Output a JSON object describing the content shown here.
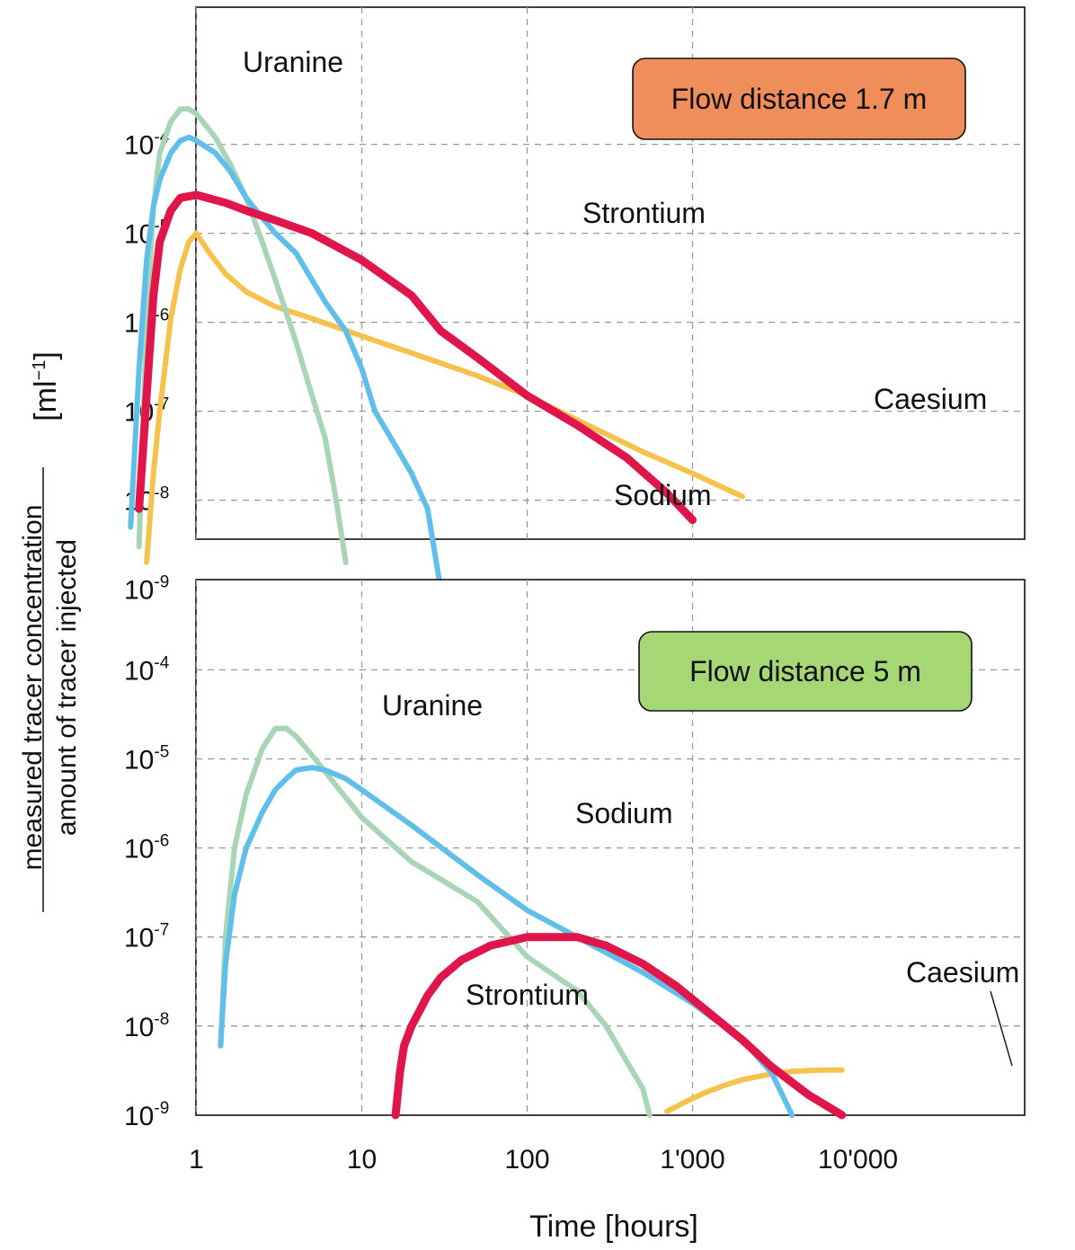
{
  "figure": {
    "xlabel": "Time  [hours]",
    "ylabel": {
      "unit_base": "[ml",
      "unit_exp": "−1",
      "unit_close": "]",
      "numerator": "measured tracer concentration",
      "denominator": "amount of tracer injected"
    },
    "x_ticks": [
      "1",
      "10",
      "100",
      "1'000",
      "10'000"
    ],
    "y_tick_base": "10",
    "y_tick_exps": [
      "-4",
      "-5",
      "-6",
      "-7",
      "-8",
      "-9"
    ]
  },
  "colors": {
    "Uranine": "#a8d5b5",
    "Sodium": "#5fbfea",
    "Strontium": "#e0164a",
    "Caesium": "#f6c24e",
    "box_top": "#ef8e5b",
    "box_bottom": "#a6d775",
    "grid": "#999999"
  },
  "chart_data": [
    {
      "type": "line",
      "box_label": "Flow distance  1.7  m",
      "xscale": "log",
      "yscale": "log",
      "xlim": [
        0.2,
        10000
      ],
      "ylim": [
        1e-09,
        0.0005
      ],
      "grid": true,
      "series": [
        {
          "name": "Uranine",
          "label": "Uranine",
          "x": [
            0.45,
            0.5,
            0.55,
            0.6,
            0.7,
            0.8,
            0.9,
            1,
            1.3,
            1.6,
            2,
            2.5,
            3,
            4,
            5,
            6,
            7,
            8
          ],
          "y": [
            3e-09,
            1e-06,
            2e-05,
            8e-05,
            0.00018,
            0.00025,
            0.00025,
            0.00022,
            0.00012,
            6e-05,
            2.5e-05,
            8e-06,
            3e-06,
            6e-07,
            1.5e-07,
            5e-08,
            1e-08,
            2e-09
          ]
        },
        {
          "name": "Sodium",
          "label": "Sodium",
          "x": [
            0.4,
            0.45,
            0.5,
            0.55,
            0.6,
            0.7,
            0.8,
            0.9,
            1,
            1.3,
            1.6,
            2,
            2.5,
            3,
            4,
            5,
            6,
            8,
            10,
            12,
            15,
            20,
            25,
            30
          ],
          "y": [
            5e-09,
            3e-07,
            5e-06,
            2e-05,
            4e-05,
            8e-05,
            0.00011,
            0.00012,
            0.00011,
            8e-05,
            5e-05,
            2.5e-05,
            1.5e-05,
            1e-05,
            6e-06,
            3e-06,
            1.7e-06,
            8e-07,
            3e-07,
            1e-07,
            5e-08,
            2e-08,
            8e-09,
            1e-09
          ]
        },
        {
          "name": "Strontium",
          "label": "Strontium",
          "x": [
            0.45,
            0.5,
            0.55,
            0.6,
            0.7,
            0.8,
            1,
            1.5,
            2,
            3,
            5,
            10,
            20,
            30,
            50,
            100,
            200,
            400,
            700,
            1000
          ],
          "y": [
            8e-09,
            1.5e-07,
            2e-06,
            8e-06,
            1.8e-05,
            2.5e-05,
            2.7e-05,
            2.2e-05,
            1.8e-05,
            1.4e-05,
            1e-05,
            5e-06,
            2e-06,
            8e-07,
            4e-07,
            1.5e-07,
            7e-08,
            3e-08,
            1.2e-08,
            6e-09
          ]
        },
        {
          "name": "Caesium",
          "label": "Caesium",
          "x": [
            0.5,
            0.55,
            0.6,
            0.7,
            0.8,
            0.9,
            1,
            1.2,
            1.5,
            2,
            3,
            5,
            10,
            20,
            50,
            100,
            200,
            500,
            1000,
            2000
          ],
          "y": [
            2e-09,
            2e-08,
            1e-07,
            1.1e-06,
            4e-06,
            8e-06,
            1e-05,
            6e-06,
            3.5e-06,
            2.2e-06,
            1.5e-06,
            1.1e-06,
            7e-07,
            4.5e-07,
            2.5e-07,
            1.5e-07,
            8e-08,
            3.5e-08,
            2e-08,
            1.1e-08
          ]
        }
      ]
    },
    {
      "type": "line",
      "box_label": "Flow distance  5 m",
      "xscale": "log",
      "yscale": "log",
      "xlim": [
        0.2,
        10000
      ],
      "ylim": [
        1e-09,
        0.0005
      ],
      "grid": true,
      "series": [
        {
          "name": "Uranine",
          "label": "Uranine",
          "x": [
            1.4,
            1.5,
            1.7,
            2,
            2.5,
            3,
            3.5,
            4,
            5,
            7,
            10,
            20,
            50,
            100,
            200,
            300,
            400,
            500,
            550
          ],
          "y": [
            6e-09,
            1e-07,
            1e-06,
            4e-06,
            1.3e-05,
            2.2e-05,
            2.2e-05,
            1.8e-05,
            1.1e-05,
            5e-06,
            2.2e-06,
            7e-07,
            2.5e-07,
            6e-08,
            2.5e-08,
            1e-08,
            4e-09,
            2e-09,
            1e-09
          ]
        },
        {
          "name": "Sodium",
          "label": "Sodium",
          "x": [
            1.4,
            1.5,
            1.7,
            2,
            2.5,
            3,
            3.5,
            4,
            5,
            6,
            8,
            10,
            20,
            50,
            100,
            200,
            500,
            1000,
            2000,
            3000,
            4000
          ],
          "y": [
            6e-09,
            5e-08,
            3e-07,
            1e-06,
            2.5e-06,
            4.5e-06,
            6e-06,
            7.5e-06,
            8e-06,
            7.5e-06,
            6e-06,
            4.5e-06,
            1.8e-06,
            5e-07,
            2e-07,
            1e-07,
            4e-08,
            1.8e-08,
            7e-09,
            3e-09,
            1e-09
          ]
        },
        {
          "name": "Strontium",
          "label": "Strontium",
          "x": [
            16,
            17,
            18,
            20,
            25,
            30,
            40,
            60,
            100,
            150,
            200,
            300,
            500,
            800,
            1000,
            2000,
            3000,
            5000,
            8000
          ],
          "y": [
            1e-09,
            3e-09,
            6e-09,
            1e-08,
            2.2e-08,
            3.5e-08,
            5.5e-08,
            8e-08,
            1e-07,
            1e-07,
            1e-07,
            8e-08,
            5e-08,
            2.8e-08,
            2e-08,
            7e-09,
            3.5e-09,
            1.7e-09,
            1e-09
          ]
        },
        {
          "name": "Caesium",
          "label": "Caesium",
          "x": [
            700,
            900,
            1200,
            1600,
            2000,
            3000,
            4000,
            6000,
            8000
          ],
          "y": [
            1.1e-09,
            1.4e-09,
            1.8e-09,
            2.2e-09,
            2.5e-09,
            2.9e-09,
            3.1e-09,
            3.2e-09,
            3.2e-09
          ]
        }
      ]
    }
  ]
}
